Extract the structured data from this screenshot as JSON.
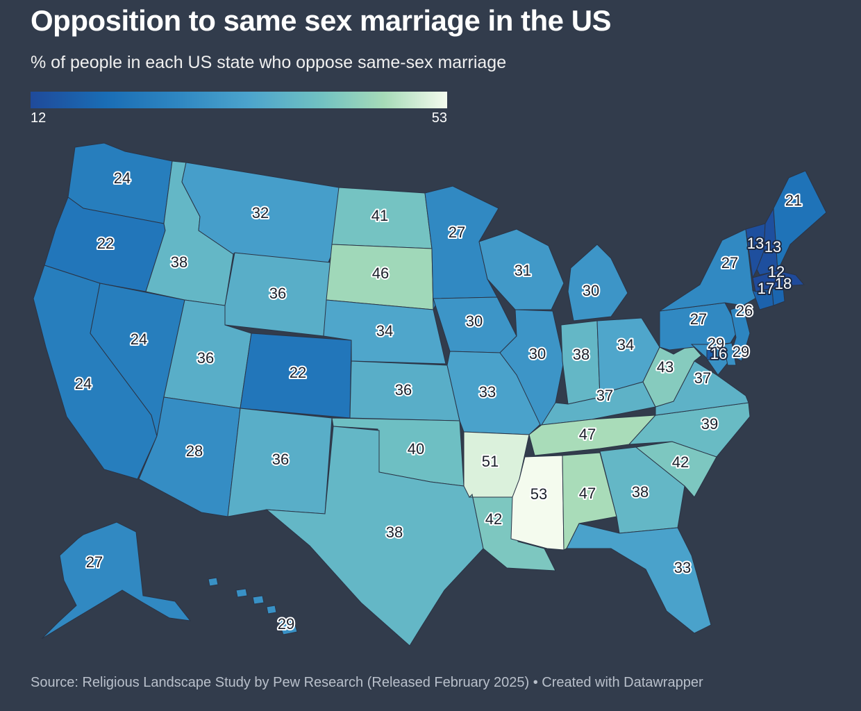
{
  "title": "Opposition to same sex marriage in the US",
  "subtitle": "% of people in each US state who oppose same-sex marriage",
  "legend": {
    "min": "12",
    "max": "53"
  },
  "source": "Source: Religious Landscape Study by Pew Research (Released February 2025) • Created with Datawrapper",
  "chart_data": {
    "type": "choropleth",
    "value_range": [
      12,
      53
    ],
    "colors": {
      "low": "#1f4a9a",
      "high": "#f4fbee",
      "background": "#323c4c"
    },
    "states": [
      {
        "state": "Washington",
        "value": 24
      },
      {
        "state": "Oregon",
        "value": 22
      },
      {
        "state": "California",
        "value": 24
      },
      {
        "state": "Nevada",
        "value": 24
      },
      {
        "state": "Idaho",
        "value": 38
      },
      {
        "state": "Montana",
        "value": 32
      },
      {
        "state": "Wyoming",
        "value": 36
      },
      {
        "state": "Utah",
        "value": 36
      },
      {
        "state": "Arizona",
        "value": 28
      },
      {
        "state": "Colorado",
        "value": 22
      },
      {
        "state": "New Mexico",
        "value": 36
      },
      {
        "state": "North Dakota",
        "value": 41
      },
      {
        "state": "South Dakota",
        "value": 46
      },
      {
        "state": "Nebraska",
        "value": 34
      },
      {
        "state": "Kansas",
        "value": 36
      },
      {
        "state": "Oklahoma",
        "value": 40
      },
      {
        "state": "Texas",
        "value": 38
      },
      {
        "state": "Minnesota",
        "value": 27
      },
      {
        "state": "Iowa",
        "value": 30
      },
      {
        "state": "Missouri",
        "value": 33
      },
      {
        "state": "Arkansas",
        "value": 51
      },
      {
        "state": "Louisiana",
        "value": 42
      },
      {
        "state": "Wisconsin",
        "value": 31
      },
      {
        "state": "Illinois",
        "value": 30
      },
      {
        "state": "Michigan",
        "value": 30
      },
      {
        "state": "Indiana",
        "value": 38
      },
      {
        "state": "Ohio",
        "value": 34
      },
      {
        "state": "Kentucky",
        "value": 37
      },
      {
        "state": "Tennessee",
        "value": 47
      },
      {
        "state": "Mississippi",
        "value": 53
      },
      {
        "state": "Alabama",
        "value": 47
      },
      {
        "state": "Georgia",
        "value": 38
      },
      {
        "state": "Florida",
        "value": 33
      },
      {
        "state": "South Carolina",
        "value": 42
      },
      {
        "state": "North Carolina",
        "value": 39
      },
      {
        "state": "Virginia",
        "value": 37
      },
      {
        "state": "West Virginia",
        "value": 43
      },
      {
        "state": "Pennsylvania",
        "value": 27
      },
      {
        "state": "New York",
        "value": 27
      },
      {
        "state": "Vermont",
        "value": 13
      },
      {
        "state": "New Hampshire",
        "value": 13
      },
      {
        "state": "Maine",
        "value": 21
      },
      {
        "state": "Massachusetts",
        "value": 12
      },
      {
        "state": "Connecticut",
        "value": 17
      },
      {
        "state": "Rhode Island",
        "value": 18
      },
      {
        "state": "New Jersey",
        "value": 26
      },
      {
        "state": "Maryland",
        "value": 29
      },
      {
        "state": "Delaware",
        "value": 29
      },
      {
        "state": "District of Columbia",
        "value": 16
      },
      {
        "state": "Alaska",
        "value": 27
      },
      {
        "state": "Hawaii",
        "value": 29
      }
    ]
  }
}
